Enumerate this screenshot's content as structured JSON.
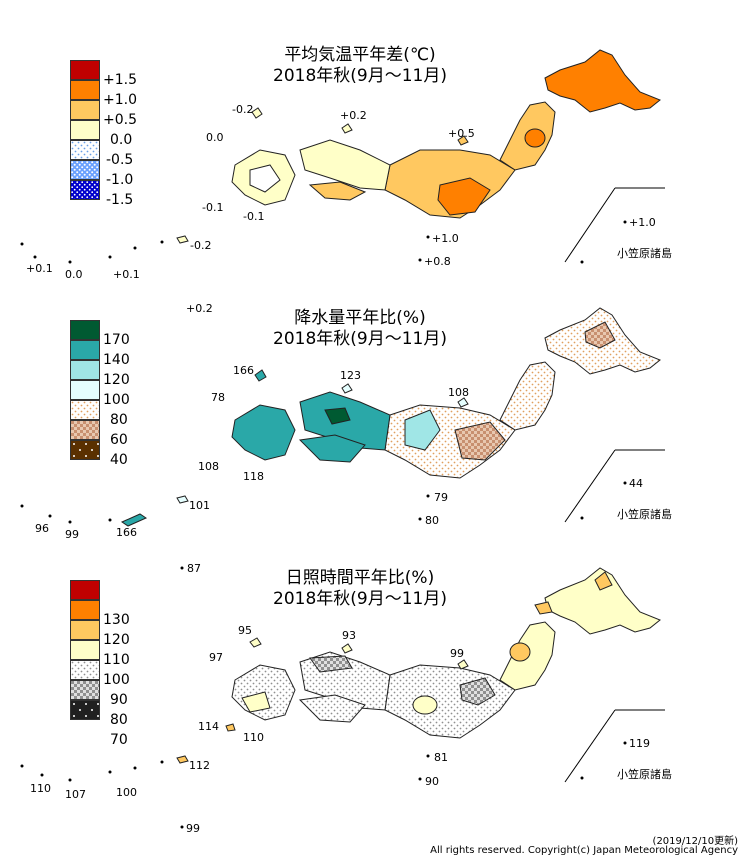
{
  "panels": [
    {
      "title_line1": "平均気温平年差(℃)",
      "title_line2": "2018年秋(9月～11月)",
      "legend": [
        {
          "label": "+1.5",
          "color": "#c00000",
          "pattern": "none"
        },
        {
          "label": "+1.0",
          "color": "#ff8000",
          "pattern": "none"
        },
        {
          "label": "+0.5",
          "color": "#ffc860",
          "pattern": "none"
        },
        {
          "label": "0.0",
          "color": "#ffffc8",
          "pattern": "none"
        },
        {
          "label": "-0.5",
          "color": "#ffffff",
          "pattern": "dots-blue-light"
        },
        {
          "label": "-1.0",
          "color": "#ffffff",
          "pattern": "dots-blue"
        },
        {
          "label": "-1.5",
          "color": "#0000cc",
          "pattern": "dots-white"
        }
      ],
      "values": [
        "-0.2",
        "+0.2",
        "0.0",
        "+0.5",
        "-0.1",
        "-0.1",
        "-0.2",
        "+1.0",
        "+0.8",
        "+0.1",
        "0.0",
        "+0.1",
        "+0.2",
        "+1.0"
      ],
      "ogasawara": "小笠原諸島"
    },
    {
      "title_line1": "降水量平年比(%)",
      "title_line2": "2018年秋(9月～11月)",
      "legend": [
        {
          "label": "170",
          "color": "#005a32",
          "pattern": "none"
        },
        {
          "label": "140",
          "color": "#2aa8a8",
          "pattern": "none"
        },
        {
          "label": "120",
          "color": "#a0e6e6",
          "pattern": "none"
        },
        {
          "label": "100",
          "color": "#e6ffff",
          "pattern": "none"
        },
        {
          "label": "80",
          "color": "#ffffff",
          "pattern": "dots-orange"
        },
        {
          "label": "60",
          "color": "#e8c8b0",
          "pattern": "check-brown"
        },
        {
          "label": "40",
          "color": "#5a3000",
          "pattern": "dots-white"
        }
      ],
      "values": [
        "166",
        "123",
        "78",
        "108",
        "108",
        "118",
        "79",
        "80",
        "96",
        "99",
        "166",
        "101",
        "44"
      ],
      "ogasawara": "小笠原諸島"
    },
    {
      "title_line1": "日照時間平年比(%)",
      "title_line2": "2018年秋(9月～11月)",
      "legend": [
        {
          "label": "130",
          "color": "#c00000",
          "pattern": "none"
        },
        {
          "label": "120",
          "color": "#ff8000",
          "pattern": "none"
        },
        {
          "label": "110",
          "color": "#ffc860",
          "pattern": "none"
        },
        {
          "label": "100",
          "color": "#ffffc8",
          "pattern": "none"
        },
        {
          "label": "90",
          "color": "#ffffff",
          "pattern": "dots-grey"
        },
        {
          "label": "80",
          "color": "#d0d0d0",
          "pattern": "check-grey"
        },
        {
          "label": "70",
          "color": "#202020",
          "pattern": "dots-white"
        }
      ],
      "values": [
        "87",
        "95",
        "93",
        "97",
        "99",
        "114",
        "110",
        "81",
        "90",
        "110",
        "107",
        "100",
        "112",
        "99",
        "119"
      ],
      "ogasawara": "小笠原諸島"
    }
  ],
  "footer": {
    "updated": "(2019/12/10更新)",
    "copyright": "All rights reserved. Copyright(c) Japan Meteorological Agency"
  }
}
